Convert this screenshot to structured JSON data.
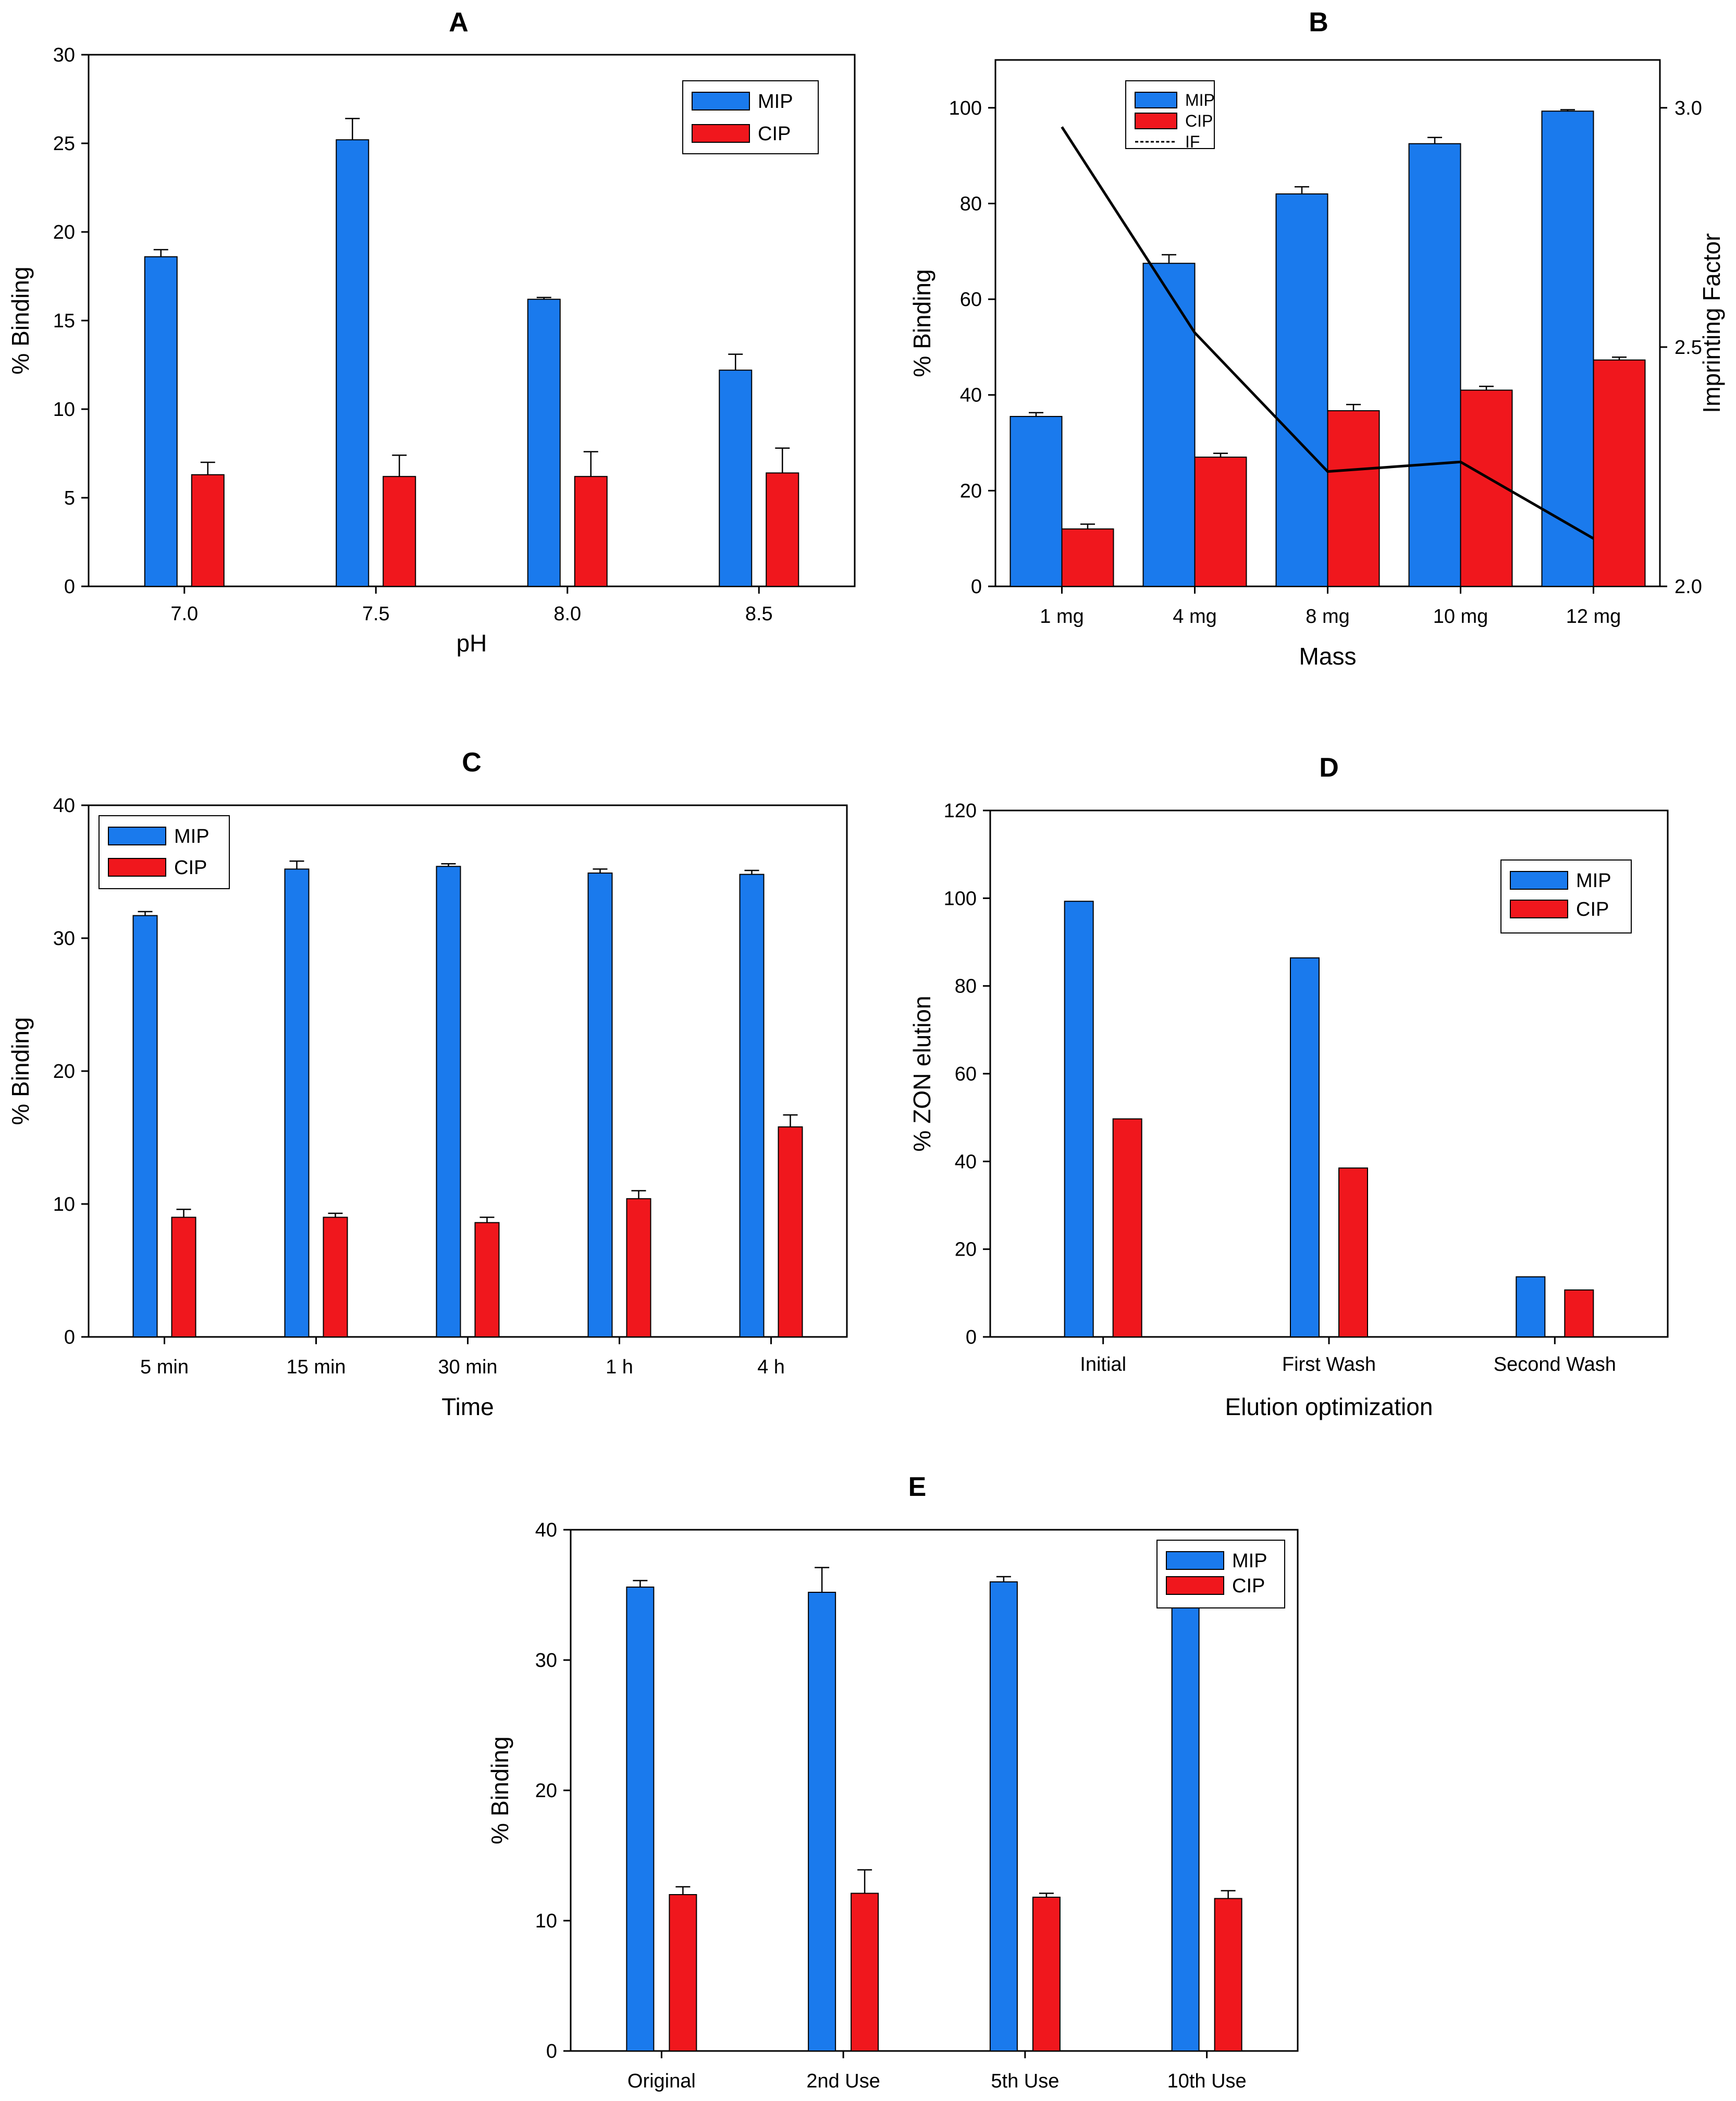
{
  "colors": {
    "mip": "#1a7aed",
    "cip": "#f0171d",
    "line": "#000000"
  },
  "chart_data": [
    {
      "panel": "A",
      "type": "bar",
      "categories": [
        "7.0",
        "7.5",
        "8.0",
        "8.5"
      ],
      "xlabel": "pH",
      "ylabel": "% Binding",
      "ylim": [
        0,
        30
      ],
      "yticks": [
        "0",
        "5",
        "10",
        "15",
        "20",
        "25",
        "30"
      ],
      "legend": "top-right",
      "series": [
        {
          "name": "MIP",
          "values": [
            18.6,
            25.2,
            16.2,
            12.2
          ],
          "errors": [
            0.4,
            1.2,
            0.1,
            0.9
          ]
        },
        {
          "name": "CIP",
          "values": [
            6.3,
            6.2,
            6.2,
            6.4
          ],
          "errors": [
            0.7,
            1.2,
            1.4,
            1.4
          ]
        }
      ]
    },
    {
      "panel": "B",
      "type": "bar",
      "categories": [
        "1 mg",
        "4 mg",
        "8 mg",
        "10 mg",
        "12 mg"
      ],
      "xlabel": "Mass",
      "ylabel": "% Binding",
      "y2label": "Imprinting Factor",
      "ylim": [
        0,
        110
      ],
      "yticks": [
        "0",
        "20",
        "40",
        "60",
        "80",
        "100"
      ],
      "y2lim": [
        2.0,
        3.1
      ],
      "y2ticks": [
        "2.0",
        "2.5",
        "3.0"
      ],
      "legend": "top-left",
      "series": [
        {
          "name": "MIP",
          "values": [
            35.5,
            67.5,
            82.0,
            92.5,
            99.3
          ],
          "errors": [
            0.8,
            1.8,
            1.5,
            1.3,
            0.3
          ]
        },
        {
          "name": "CIP",
          "values": [
            12.0,
            27.0,
            36.7,
            41.0,
            47.3
          ],
          "errors": [
            1.0,
            0.8,
            1.3,
            0.8,
            0.6
          ]
        }
      ],
      "line": {
        "name": "IF",
        "values": [
          2.96,
          2.53,
          2.24,
          2.26,
          2.1
        ]
      }
    },
    {
      "panel": "C",
      "type": "bar",
      "categories": [
        "5 min",
        "15 min",
        "30 min",
        "1 h",
        "4 h"
      ],
      "xlabel": "Time",
      "ylabel": "% Binding",
      "ylim": [
        0,
        40
      ],
      "yticks": [
        "0",
        "10",
        "20",
        "30",
        "40"
      ],
      "legend": "top-left",
      "series": [
        {
          "name": "MIP",
          "values": [
            31.7,
            35.2,
            35.4,
            34.9,
            34.8
          ],
          "errors": [
            0.3,
            0.6,
            0.2,
            0.3,
            0.3
          ]
        },
        {
          "name": "CIP",
          "values": [
            9.0,
            9.0,
            8.6,
            10.4,
            15.8
          ],
          "errors": [
            0.6,
            0.3,
            0.4,
            0.6,
            0.9
          ]
        }
      ]
    },
    {
      "panel": "D",
      "type": "bar",
      "categories": [
        "Initial",
        "First Wash",
        "Second Wash"
      ],
      "xlabel": "Elution optimization",
      "ylabel": "% ZON elution",
      "ylim": [
        0,
        120
      ],
      "yticks": [
        "0",
        "20",
        "40",
        "60",
        "80",
        "100",
        "120"
      ],
      "legend": "top-right",
      "series": [
        {
          "name": "MIP",
          "values": [
            99.3,
            86.4,
            13.7
          ],
          "errors": [
            0,
            0,
            0
          ]
        },
        {
          "name": "CIP",
          "values": [
            49.7,
            38.5,
            10.7
          ],
          "errors": [
            0,
            0,
            0
          ]
        }
      ]
    },
    {
      "panel": "E",
      "type": "bar",
      "categories": [
        "Original",
        "2nd Use",
        "5th Use",
        "10th Use"
      ],
      "xlabel": "",
      "ylabel": "% Binding",
      "ylim": [
        0,
        40
      ],
      "yticks": [
        "0",
        "10",
        "20",
        "30",
        "40"
      ],
      "legend": "top-right",
      "series": [
        {
          "name": "MIP",
          "values": [
            35.6,
            35.2,
            36.0,
            35.0
          ],
          "errors": [
            0.5,
            1.9,
            0.4,
            0.5
          ]
        },
        {
          "name": "CIP",
          "values": [
            12.0,
            12.1,
            11.8,
            11.7
          ],
          "errors": [
            0.6,
            1.8,
            0.3,
            0.6
          ]
        }
      ]
    }
  ]
}
